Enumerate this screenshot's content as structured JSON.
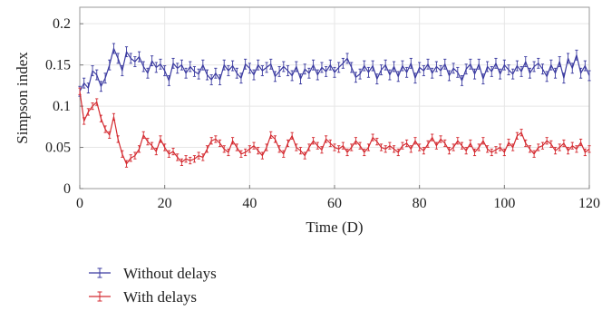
{
  "chart_data": {
    "type": "line",
    "xlabel": "Time (D)",
    "ylabel": "Simpson index",
    "xlim": [
      0,
      120
    ],
    "ylim": [
      0,
      0.22
    ],
    "xticks": [
      0,
      20,
      40,
      60,
      80,
      100,
      120
    ],
    "yticks": [
      0,
      0.05,
      0.1,
      0.15,
      0.2
    ],
    "xtick_labels": [
      "0",
      "20",
      "40",
      "60",
      "80",
      "100",
      "120"
    ],
    "ytick_labels": [
      "0",
      "0.05",
      "0.1",
      "0.15",
      "0.2"
    ],
    "grid": true,
    "legend_position": "bottom-left",
    "x_step": 1,
    "series": [
      {
        "name": "Without delays",
        "color": "#3a3aa0",
        "error": 0.006,
        "values": [
          0.118,
          0.128,
          0.122,
          0.143,
          0.138,
          0.124,
          0.134,
          0.15,
          0.17,
          0.158,
          0.143,
          0.166,
          0.158,
          0.154,
          0.16,
          0.148,
          0.14,
          0.155,
          0.147,
          0.151,
          0.143,
          0.131,
          0.152,
          0.146,
          0.15,
          0.14,
          0.148,
          0.142,
          0.139,
          0.15,
          0.138,
          0.132,
          0.14,
          0.132,
          0.15,
          0.143,
          0.149,
          0.14,
          0.134,
          0.151,
          0.146,
          0.138,
          0.15,
          0.143,
          0.147,
          0.151,
          0.136,
          0.142,
          0.148,
          0.143,
          0.137,
          0.148,
          0.133,
          0.145,
          0.14,
          0.15,
          0.138,
          0.147,
          0.142,
          0.15,
          0.141,
          0.147,
          0.152,
          0.158,
          0.147,
          0.135,
          0.139,
          0.149,
          0.141,
          0.149,
          0.133,
          0.144,
          0.15,
          0.138,
          0.148,
          0.136,
          0.149,
          0.141,
          0.152,
          0.134,
          0.147,
          0.143,
          0.151,
          0.14,
          0.148,
          0.143,
          0.151,
          0.137,
          0.146,
          0.141,
          0.131,
          0.145,
          0.151,
          0.139,
          0.151,
          0.133,
          0.148,
          0.142,
          0.152,
          0.139,
          0.15,
          0.144,
          0.139,
          0.149,
          0.142,
          0.154,
          0.14,
          0.148,
          0.152,
          0.145,
          0.136,
          0.15,
          0.14,
          0.154,
          0.134,
          0.158,
          0.146,
          0.162,
          0.14,
          0.149,
          0.137
        ]
      },
      {
        "name": "With delays",
        "color": "#d42a30",
        "error": 0.004,
        "values": [
          0.118,
          0.082,
          0.093,
          0.1,
          0.105,
          0.085,
          0.072,
          0.065,
          0.087,
          0.06,
          0.042,
          0.03,
          0.037,
          0.04,
          0.048,
          0.065,
          0.057,
          0.052,
          0.045,
          0.06,
          0.05,
          0.042,
          0.045,
          0.038,
          0.032,
          0.036,
          0.034,
          0.036,
          0.04,
          0.038,
          0.048,
          0.058,
          0.06,
          0.055,
          0.048,
          0.044,
          0.058,
          0.05,
          0.042,
          0.044,
          0.048,
          0.052,
          0.046,
          0.04,
          0.05,
          0.065,
          0.06,
          0.048,
          0.042,
          0.055,
          0.064,
          0.05,
          0.046,
          0.04,
          0.05,
          0.058,
          0.052,
          0.047,
          0.06,
          0.055,
          0.05,
          0.048,
          0.052,
          0.044,
          0.05,
          0.058,
          0.052,
          0.044,
          0.05,
          0.062,
          0.057,
          0.05,
          0.048,
          0.052,
          0.048,
          0.044,
          0.052,
          0.055,
          0.048,
          0.058,
          0.05,
          0.046,
          0.054,
          0.062,
          0.052,
          0.06,
          0.055,
          0.046,
          0.05,
          0.058,
          0.052,
          0.046,
          0.055,
          0.044,
          0.05,
          0.058,
          0.048,
          0.044,
          0.047,
          0.05,
          0.044,
          0.056,
          0.05,
          0.064,
          0.068,
          0.055,
          0.048,
          0.042,
          0.05,
          0.052,
          0.058,
          0.054,
          0.046,
          0.05,
          0.055,
          0.046,
          0.052,
          0.048,
          0.056,
          0.044,
          0.048
        ]
      }
    ]
  }
}
